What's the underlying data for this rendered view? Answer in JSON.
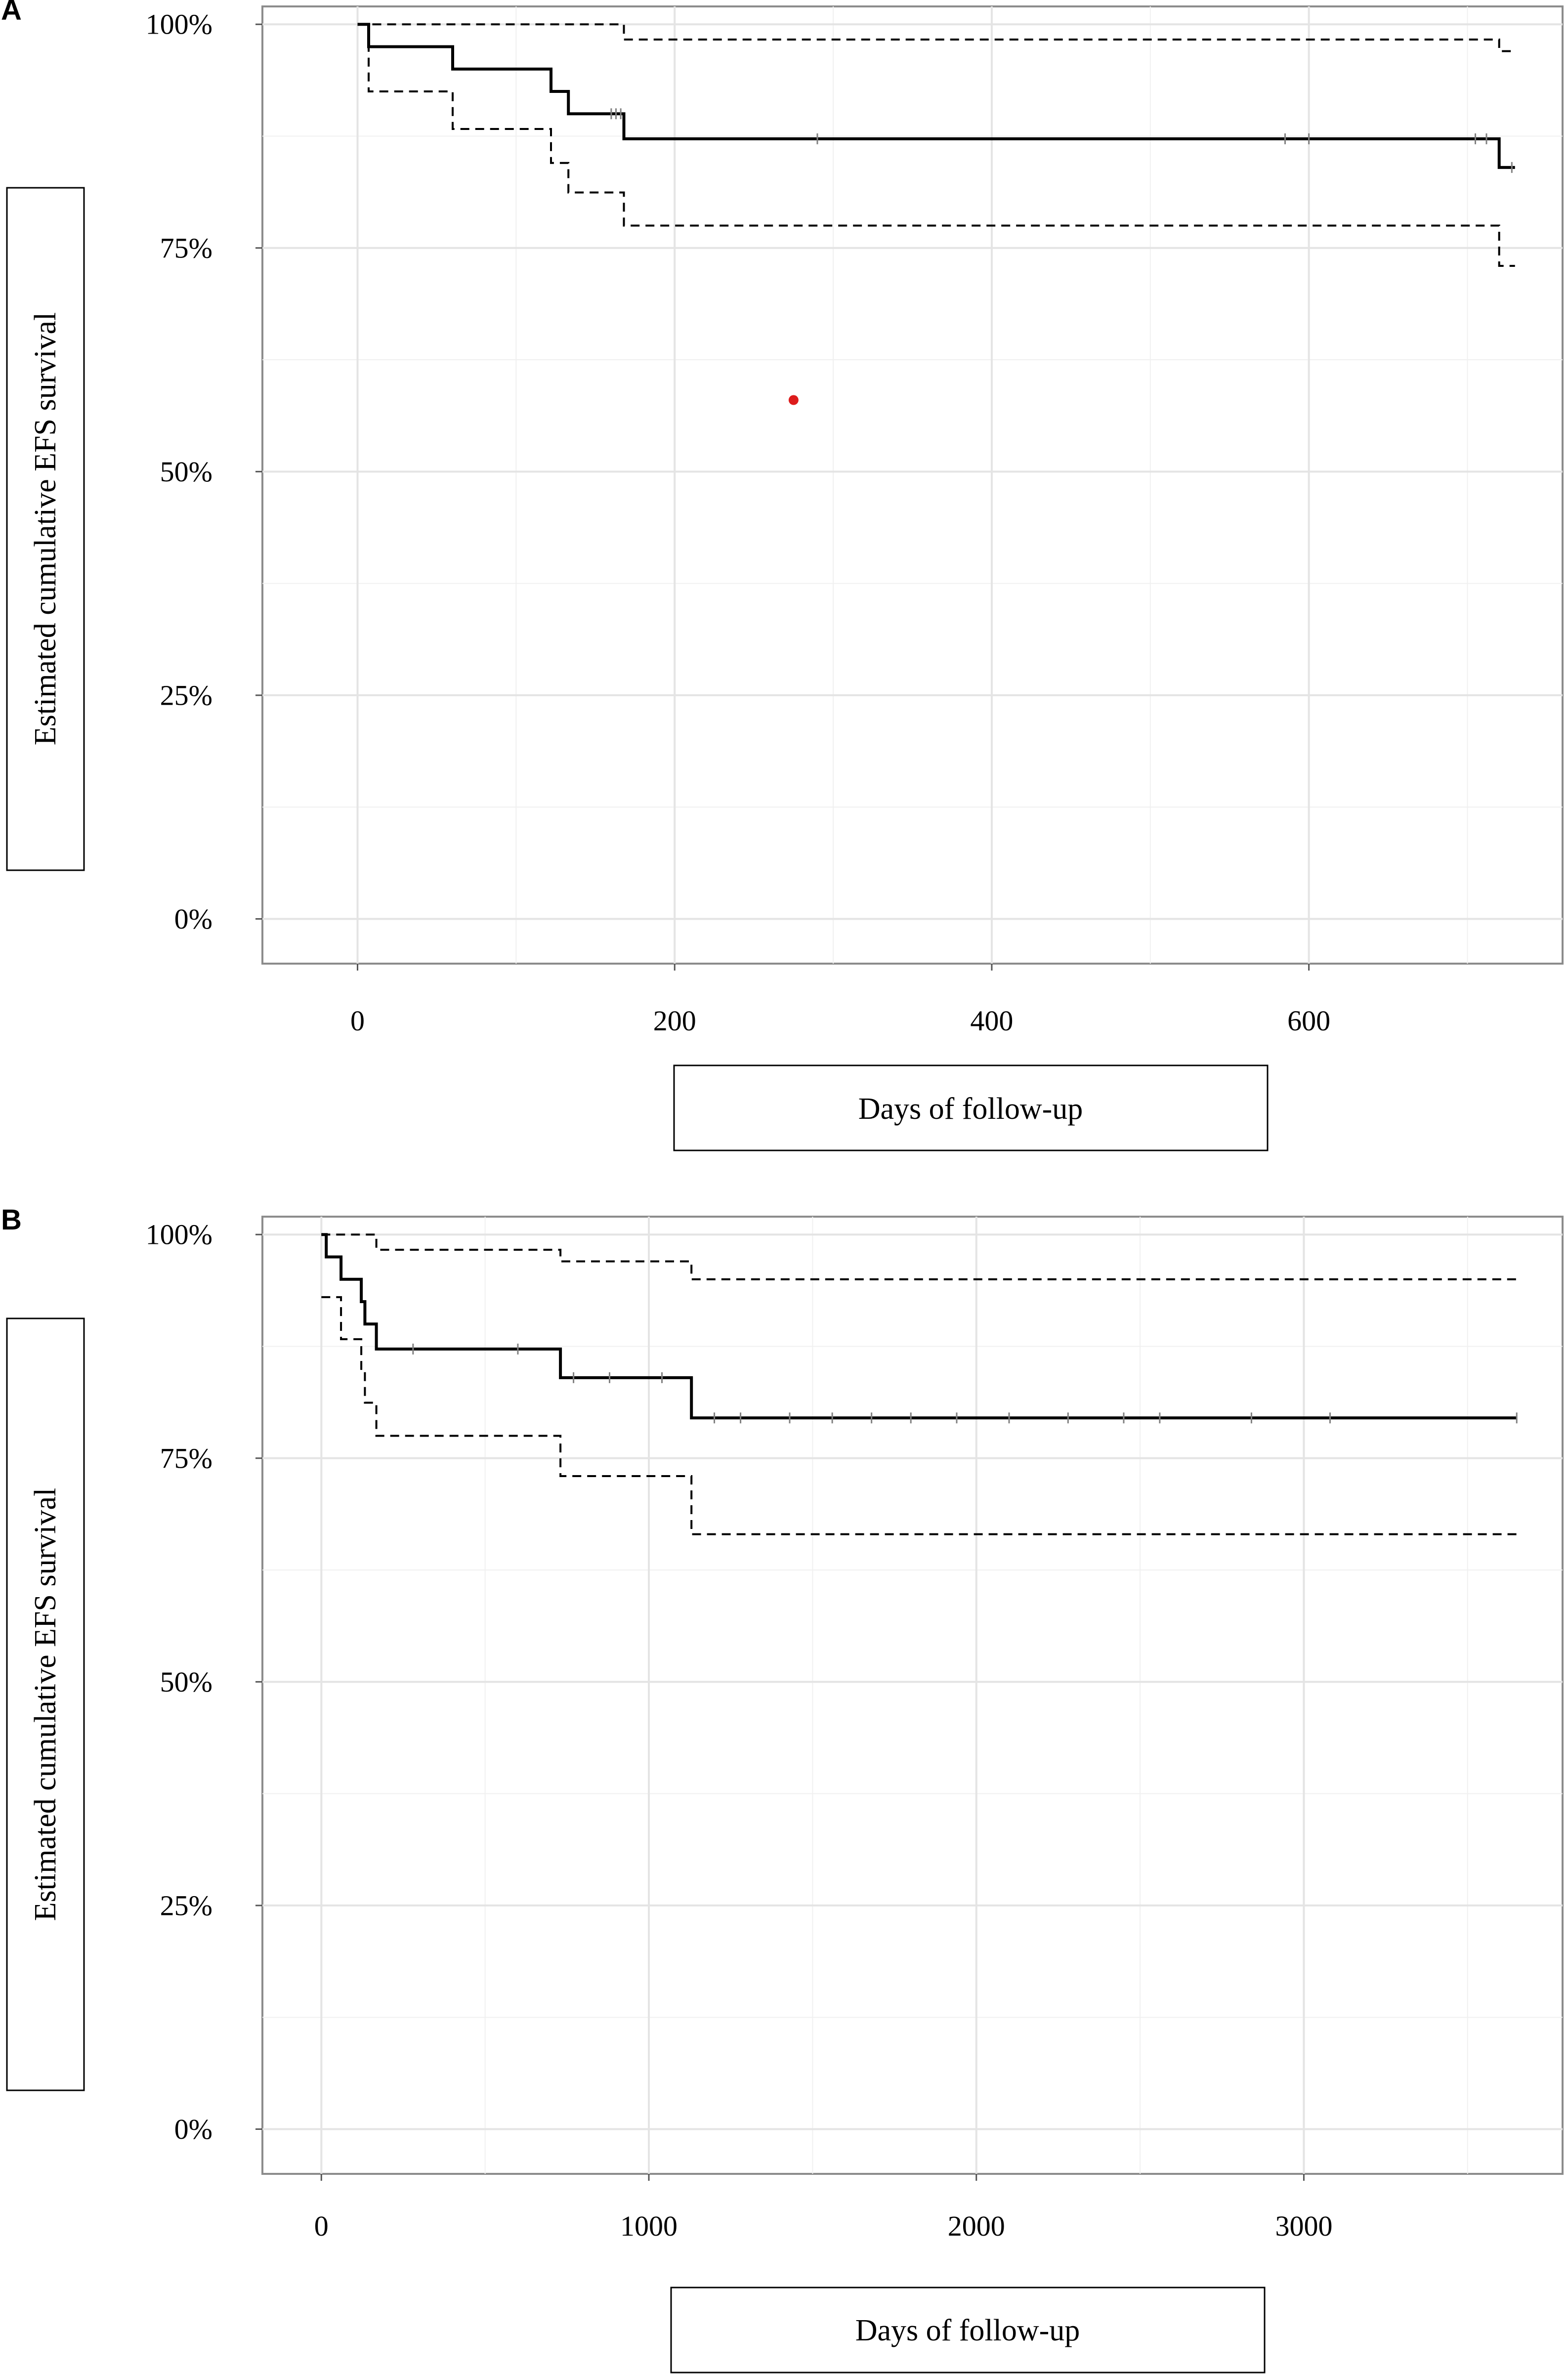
{
  "chart_data": [
    {
      "type": "line",
      "panel": "A",
      "xlabel": "Days of follow-up",
      "ylabel": "Estimated cumulative EFS survival",
      "xlim": [
        -60,
        760
      ],
      "ylim": [
        -0.05,
        1.02
      ],
      "xticks": [
        0,
        200,
        400,
        600
      ],
      "xtick_labels": [
        "0",
        "200",
        "400",
        "600"
      ],
      "yticks": [
        0,
        0.25,
        0.5,
        0.75,
        1.0
      ],
      "ytick_labels": [
        "0%",
        "25%",
        "50%",
        "75%",
        "100%"
      ],
      "series": [
        {
          "name": "estimate",
          "style": "solid",
          "points": [
            [
              0,
              1.0
            ],
            [
              7,
              1.0
            ],
            [
              7,
              0.975
            ],
            [
              60,
              0.975
            ],
            [
              60,
              0.95
            ],
            [
              122,
              0.95
            ],
            [
              122,
              0.925
            ],
            [
              133,
              0.925
            ],
            [
              133,
              0.9
            ],
            [
              168,
              0.9
            ],
            [
              168,
              0.872
            ],
            [
              720,
              0.872
            ],
            [
              720,
              0.84
            ],
            [
              730,
              0.84
            ]
          ]
        },
        {
          "name": "upper 95% CI",
          "style": "dashed",
          "points": [
            [
              0,
              1.0
            ],
            [
              168,
              1.0
            ],
            [
              168,
              0.983
            ],
            [
              720,
              0.983
            ],
            [
              720,
              0.97
            ],
            [
              730,
              0.97
            ]
          ]
        },
        {
          "name": "lower 95% CI",
          "style": "dashed",
          "points": [
            [
              0,
              1.0
            ],
            [
              7,
              1.0
            ],
            [
              7,
              0.925
            ],
            [
              60,
              0.925
            ],
            [
              60,
              0.883
            ],
            [
              122,
              0.883
            ],
            [
              122,
              0.845
            ],
            [
              133,
              0.845
            ],
            [
              133,
              0.812
            ],
            [
              168,
              0.812
            ],
            [
              168,
              0.775
            ],
            [
              720,
              0.775
            ],
            [
              720,
              0.73
            ],
            [
              730,
              0.73
            ]
          ]
        }
      ],
      "censor_marks": [
        [
          160,
          0.9
        ],
        [
          163,
          0.9
        ],
        [
          166,
          0.9
        ],
        [
          290,
          0.872
        ],
        [
          585,
          0.872
        ],
        [
          600,
          0.872
        ],
        [
          705,
          0.872
        ],
        [
          712,
          0.872
        ],
        [
          728,
          0.84
        ]
      ],
      "annotations": [
        {
          "x": 275,
          "y": 0.58,
          "color": "#dd1c1c"
        }
      ]
    },
    {
      "type": "line",
      "panel": "B",
      "xlabel": "Days of follow-up",
      "ylabel": "Estimated cumulative EFS survival",
      "xlim": [
        -180,
        3790
      ],
      "ylim": [
        -0.05,
        1.02
      ],
      "xticks": [
        0,
        1000,
        2000,
        3000
      ],
      "xtick_labels": [
        "0",
        "1000",
        "2000",
        "3000"
      ],
      "yticks": [
        0,
        0.25,
        0.5,
        0.75,
        1.0
      ],
      "ytick_labels": [
        "0%",
        "25%",
        "50%",
        "75%",
        "100%"
      ],
      "series": [
        {
          "name": "estimate",
          "style": "solid",
          "points": [
            [
              0,
              1.0
            ],
            [
              15,
              1.0
            ],
            [
              15,
              0.975
            ],
            [
              60,
              0.975
            ],
            [
              60,
              0.95
            ],
            [
              122,
              0.95
            ],
            [
              122,
              0.925
            ],
            [
              133,
              0.925
            ],
            [
              133,
              0.9
            ],
            [
              168,
              0.9
            ],
            [
              168,
              0.872
            ],
            [
              730,
              0.872
            ],
            [
              730,
              0.84
            ],
            [
              1130,
              0.84
            ],
            [
              1130,
              0.795
            ],
            [
              3650,
              0.795
            ]
          ]
        },
        {
          "name": "upper 95% CI",
          "style": "dashed",
          "points": [
            [
              0,
              1.0
            ],
            [
              168,
              1.0
            ],
            [
              168,
              0.983
            ],
            [
              730,
              0.983
            ],
            [
              730,
              0.97
            ],
            [
              1130,
              0.97
            ],
            [
              1130,
              0.95
            ],
            [
              3650,
              0.95
            ]
          ]
        },
        {
          "name": "lower 95% CI",
          "style": "dashed",
          "points": [
            [
              0,
              0.93
            ],
            [
              60,
              0.93
            ],
            [
              60,
              0.883
            ],
            [
              122,
              0.883
            ],
            [
              122,
              0.845
            ],
            [
              133,
              0.845
            ],
            [
              133,
              0.812
            ],
            [
              168,
              0.812
            ],
            [
              168,
              0.775
            ],
            [
              730,
              0.775
            ],
            [
              730,
              0.73
            ],
            [
              1130,
              0.73
            ],
            [
              1130,
              0.665
            ],
            [
              3650,
              0.665
            ]
          ]
        }
      ],
      "censor_marks": [
        [
          280,
          0.872
        ],
        [
          600,
          0.872
        ],
        [
          770,
          0.84
        ],
        [
          880,
          0.84
        ],
        [
          1040,
          0.84
        ],
        [
          1200,
          0.795
        ],
        [
          1280,
          0.795
        ],
        [
          1430,
          0.795
        ],
        [
          1560,
          0.795
        ],
        [
          1680,
          0.795
        ],
        [
          1800,
          0.795
        ],
        [
          1940,
          0.795
        ],
        [
          2100,
          0.795
        ],
        [
          2280,
          0.795
        ],
        [
          2450,
          0.795
        ],
        [
          2560,
          0.795
        ],
        [
          2840,
          0.795
        ],
        [
          3080,
          0.795
        ],
        [
          3650,
          0.795
        ]
      ],
      "annotations": []
    }
  ]
}
